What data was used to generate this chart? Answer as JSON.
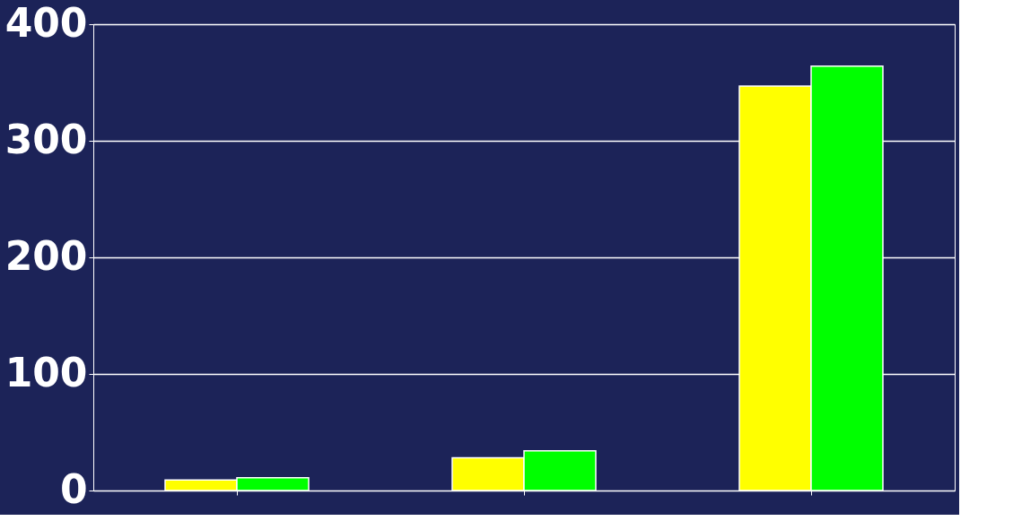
{
  "chart_data": {
    "type": "bar",
    "categories": [
      null,
      null,
      null
    ],
    "series": [
      {
        "color": "#ffff00",
        "values": [
          9,
          28,
          347
        ]
      },
      {
        "color": "#00ff00",
        "values": [
          11,
          34,
          364
        ]
      }
    ],
    "ylim": [
      0,
      400
    ],
    "yticks": [
      0,
      100,
      200,
      300,
      400
    ],
    "grid": "y",
    "legend": false
  }
}
